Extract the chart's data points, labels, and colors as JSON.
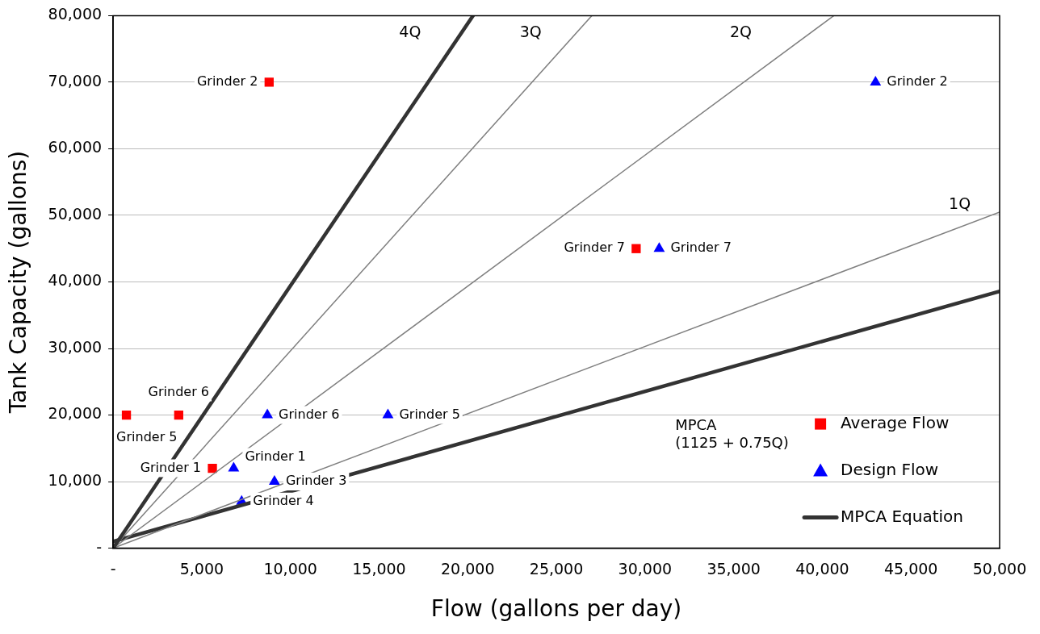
{
  "chart_data": {
    "type": "scatter",
    "xlabel": "Flow (gallons per day)",
    "ylabel": "Tank Capacity (gallons)",
    "xlim": [
      0,
      50000
    ],
    "ylim": [
      0,
      80000
    ],
    "xticks": [
      {
        "value": 0,
        "label": "-"
      },
      {
        "value": 5000,
        "label": "5,000"
      },
      {
        "value": 10000,
        "label": "10,000"
      },
      {
        "value": 15000,
        "label": "15,000"
      },
      {
        "value": 20000,
        "label": "20,000"
      },
      {
        "value": 25000,
        "label": "25,000"
      },
      {
        "value": 30000,
        "label": "30,000"
      },
      {
        "value": 35000,
        "label": "35,000"
      },
      {
        "value": 40000,
        "label": "40,000"
      },
      {
        "value": 45000,
        "label": "45,000"
      },
      {
        "value": 50000,
        "label": "50,000"
      }
    ],
    "yticks": [
      {
        "value": 0,
        "label": "-"
      },
      {
        "value": 10000,
        "label": "10,000"
      },
      {
        "value": 20000,
        "label": "20,000"
      },
      {
        "value": 30000,
        "label": "30,000"
      },
      {
        "value": 40000,
        "label": "40,000"
      },
      {
        "value": 50000,
        "label": "50,000"
      },
      {
        "value": 60000,
        "label": "60,000"
      },
      {
        "value": 70000,
        "label": "70,000"
      },
      {
        "value": 80000,
        "label": "80,000"
      }
    ],
    "grid": "y",
    "legend": "bottom right",
    "series": [
      {
        "name": "Average Flow",
        "marker": "square",
        "color": "#ff0000",
        "x": [
          5600,
          8800,
          750,
          3700,
          29500
        ],
        "values": [
          12000,
          70000,
          20000,
          20000,
          45000
        ]
      },
      {
        "name": "Design Flow",
        "marker": "triangle",
        "color": "#0000ff",
        "x": [
          6800,
          43000,
          9100,
          7250,
          15500,
          8700,
          30800
        ],
        "values": [
          12000,
          70000,
          10000,
          7000,
          20000,
          20000,
          45000
        ]
      },
      {
        "type": "line",
        "marker": "none",
        "color": "#333333",
        "x": [
          0,
          20300
        ],
        "values": [
          0,
          80000
        ]
      },
      {
        "type": "line",
        "marker": "none",
        "color": "#808080",
        "x": [
          0,
          27000
        ],
        "values": [
          0,
          80000
        ]
      },
      {
        "type": "line",
        "marker": "none",
        "color": "#808080",
        "x": [
          0,
          40650
        ],
        "values": [
          0,
          80000
        ]
      },
      {
        "type": "line",
        "marker": "none",
        "color": "#808080",
        "x": [
          0,
          50000
        ],
        "values": [
          0,
          50500
        ]
      },
      {
        "name": "MPCA Equation",
        "type": "line",
        "marker": "none",
        "color": "#333333",
        "x": [
          0,
          50000
        ],
        "values": [
          1000,
          38600
        ]
      }
    ],
    "annotations": [
      {
        "text": "Grinder 2",
        "x": 8800,
        "y": 70000
      },
      {
        "text": "Grinder 2",
        "x": 43000,
        "y": 70000
      },
      {
        "text": "Grinder 7",
        "x": 29500,
        "y": 45000
      },
      {
        "text": "Grinder 7",
        "x": 30800,
        "y": 45000
      },
      {
        "text": "Grinder 6",
        "x": 3700,
        "y": 20000
      },
      {
        "text": "Grinder 6",
        "x": 8700,
        "y": 20000
      },
      {
        "text": "Grinder 5",
        "x": 750,
        "y": 20000
      },
      {
        "text": "Grinder 5",
        "x": 15500,
        "y": 20000
      },
      {
        "text": "Grinder 1",
        "x": 5600,
        "y": 12000
      },
      {
        "text": "Grinder 1",
        "x": 6800,
        "y": 12000
      },
      {
        "text": "Grinder 3",
        "x": 9100,
        "y": 10000
      },
      {
        "text": "Grinder 4",
        "x": 7250,
        "y": 7000
      },
      "4Q",
      "3Q",
      "2Q",
      "1Q",
      "MPCA\n(1125 + 0.75Q)"
    ]
  }
}
